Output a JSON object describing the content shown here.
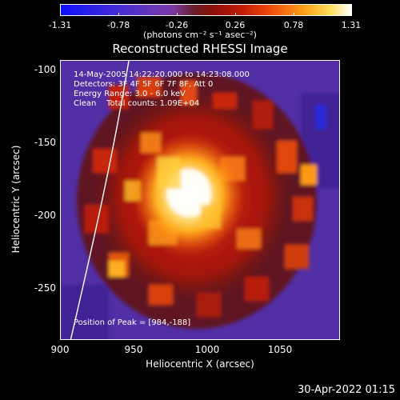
{
  "colorbar": {
    "ticks": [
      "-1.31",
      "-0.78",
      "-0.26",
      "0.26",
      "0.78",
      "1.31"
    ],
    "unit_label": "(photons cm⁻² s⁻¹ asec⁻²)"
  },
  "title": "Reconstructed RHESSI Image",
  "info": {
    "line1": "14-May-2005 14:22:20.000 to 14:23:08.000",
    "line2": "Detectors: 3F 4F 5F 6F 7F 8F, Att 0",
    "line3": "Energy Range: 3.0 - 6.0 keV",
    "line4": "Clean    Total counts: 1.09E+04",
    "peak": "Position of Peak = [984,-188]"
  },
  "axes": {
    "xlabel": "Heliocentric X (arcsec)",
    "ylabel": "Heliocentric Y (arcsec)",
    "xticks": [
      "900",
      "950",
      "1000",
      "1050"
    ],
    "yticks": [
      "-100",
      "-150",
      "-200",
      "-250"
    ]
  },
  "timestamp": "30-Apr-2022 01:15"
}
